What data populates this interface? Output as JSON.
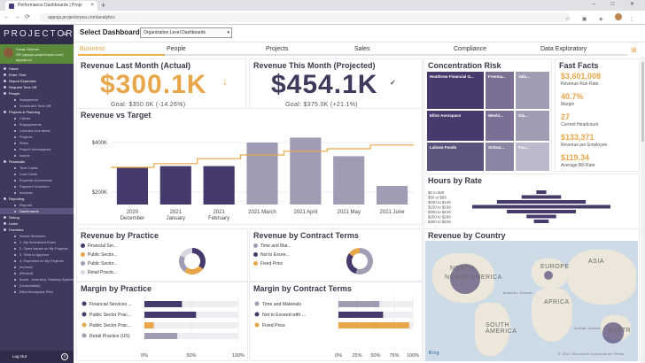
{
  "browser": {
    "tab_title": "Performance Dashboards | Proje",
    "url": "appoja.projectorpsa.com/analytics",
    "window_controls": "– □ ✕"
  },
  "sidebar": {
    "logo": "PROJECTOR",
    "user_name": "Susan Skinner",
    "user_email": "GR (appoja.projectorpsa.com)",
    "user_extra": "appoja.ud",
    "items": [
      {
        "label": "Home",
        "type": "sec"
      },
      {
        "label": "Enter Time",
        "type": "sec"
      },
      {
        "label": "Report Expenses",
        "type": "sec"
      },
      {
        "label": "Request Time Off",
        "type": "sec"
      },
      {
        "label": "People",
        "type": "sec"
      },
      {
        "label": "Assignment",
        "type": "sub"
      },
      {
        "label": "Scheduled Time Off",
        "type": "sub"
      },
      {
        "label": "Projects & Planning",
        "type": "sec"
      },
      {
        "label": "Clients",
        "type": "sub"
      },
      {
        "label": "Engagements",
        "type": "sub"
      },
      {
        "label": "Contract Line Items",
        "type": "sub"
      },
      {
        "label": "Projects",
        "type": "sub"
      },
      {
        "label": "Roles",
        "type": "sub"
      },
      {
        "label": "Project Workspaces",
        "type": "sub"
      },
      {
        "label": "Issues",
        "type": "sub"
      },
      {
        "label": "Financials",
        "type": "sec"
      },
      {
        "label": "Time Cards",
        "type": "sub"
      },
      {
        "label": "Cost Cards",
        "type": "sub"
      },
      {
        "label": "Expense Documents",
        "type": "sub"
      },
      {
        "label": "Payment Vouchers",
        "type": "sub"
      },
      {
        "label": "Invoices",
        "type": "sub"
      },
      {
        "label": "Reporting",
        "type": "sec"
      },
      {
        "label": "Reports",
        "type": "sub"
      },
      {
        "label": "Dashboards",
        "type": "sub-act"
      },
      {
        "label": "Debug",
        "type": "sec"
      },
      {
        "label": "Learn",
        "type": "sec"
      },
      {
        "label": "Favorites",
        "type": "sec"
      },
      {
        "label": "Saved Searches",
        "type": "sub"
      },
      {
        "label": "1. My Scheduled Roles",
        "type": "sub"
      },
      {
        "label": "2. Open Issues on My Projects",
        "type": "sub"
      },
      {
        "label": "3. Time to Approve",
        "type": "sub"
      },
      {
        "label": "4. Expenses on My Projects",
        "type": "sub"
      },
      {
        "label": "Invoices",
        "type": "sub"
      },
      {
        "label": "(Recent)",
        "type": "sub"
      },
      {
        "label": "Acme - Inventory Tracking System Beta Release",
        "type": "sub"
      },
      {
        "label": "(Unavailable)",
        "type": "sub"
      },
      {
        "label": "Elliot Aerospace Pilot",
        "type": "sub"
      }
    ],
    "logout": "Log Out"
  },
  "header": {
    "label": "Select Dashboard",
    "dashboard_select": "Organization Level Dashboards"
  },
  "tabs": [
    "Business",
    "People",
    "Projects",
    "Sales",
    "Compliance",
    "Data Exploratory"
  ],
  "active_tab": "Business",
  "kpis": {
    "last_month": {
      "title": "Revenue Last Month (Actual)",
      "value": "$300.1K",
      "goal": "Goal: $350.0K (-14.26%)",
      "arrow": "↓"
    },
    "this_month": {
      "title": "Revenue This Month (Projected)",
      "value": "$454.1K",
      "goal": "Goal: $375.0K (+21.1%)",
      "arrow": "✓"
    }
  },
  "concentration": {
    "title": "Concentration Risk",
    "tiles": [
      "Heathrow Financial G...",
      "Freema...",
      "Valu...",
      "Elliot Aerospace",
      "Weshi...",
      "Gla...",
      "Lalinea Foods",
      "Schwa...",
      "Pac..."
    ]
  },
  "fast_facts": {
    "title": "Fast Facts",
    "items": [
      {
        "value": "$3,601,008",
        "label": "Revenue Run Rate"
      },
      {
        "value": "40.7%",
        "label": "Margin"
      },
      {
        "value": "27",
        "label": "Current Headcount"
      },
      {
        "value": "$133,371",
        "label": "Revenue per Employee"
      },
      {
        "value": "$119.34",
        "label": "Average Bill Rate"
      }
    ]
  },
  "chart_data": [
    {
      "type": "bar",
      "title": "Revenue vs Target",
      "categories": [
        "2020 December",
        "2021 January",
        "2021 February",
        "2021 March",
        "2021 April",
        "2021 May",
        "2021 June"
      ],
      "category_lines": [
        [
          "2020",
          "December"
        ],
        [
          "2021",
          "January"
        ],
        [
          "2021",
          "February"
        ],
        [
          "2021 March",
          ""
        ],
        [
          "2021 April",
          ""
        ],
        [
          "2021 May",
          ""
        ],
        [
          "2021 June",
          ""
        ]
      ],
      "series": [
        {
          "values": [
            300,
            305,
            305,
            400,
            420,
            345,
            225
          ],
          "colors": [
            "#453a6b",
            "#453a6b",
            "#453a6b",
            "#a19bb3",
            "#a19bb3",
            "#a19bb3",
            "#a19bb3"
          ]
        },
        {
          "kind": "step-line",
          "values": [
            300,
            315,
            335,
            350,
            365,
            375,
            390
          ],
          "color": "#e8a64a"
        }
      ],
      "ytick_labels": [
        "$200K",
        "$400K"
      ],
      "yticks": [
        200,
        400
      ],
      "ylim": [
        150,
        450
      ]
    },
    {
      "type": "bar",
      "title": "Hours by Rate",
      "orientation": "horizontal-diverging",
      "categories": [
        "$0 to $49",
        "$50 to $99",
        "$100 to $149",
        "$150 to $199",
        "$200 to $249",
        "$250 to $299",
        "$300 to $349"
      ],
      "values": [
        10,
        40,
        90,
        140,
        70,
        30,
        15
      ]
    },
    {
      "type": "pie",
      "title": "Revenue by Practice",
      "labels": [
        "Financial Ser...",
        "Public Sector...",
        "Public Sector...",
        "Retail Practic..."
      ],
      "values": [
        35,
        25,
        22,
        18
      ],
      "colors": [
        "#453a6b",
        "#e8a64a",
        "#a19bb3",
        "#d9d5e3"
      ]
    },
    {
      "type": "pie",
      "title": "Revenue by Contract Terms",
      "labels": [
        "Time and Mat...",
        "Not to Excee...",
        "Fixed Price"
      ],
      "values": [
        55,
        30,
        15
      ],
      "colors": [
        "#a19bb3",
        "#453a6b",
        "#e8a64a"
      ]
    },
    {
      "type": "bar",
      "title": "Margin by Practice",
      "orientation": "horizontal",
      "categories": [
        "Financial Services ...",
        "Public Sector Prac...",
        "Public Sector Prac...",
        "Retail Practice (US)"
      ],
      "values": [
        40,
        55,
        10,
        35
      ],
      "colors": [
        "#453a6b",
        "#453a6b",
        "#e8a64a",
        "#a19bb3"
      ],
      "xtick_labels": [
        "0%",
        "50%",
        "100%"
      ],
      "xlim": [
        0,
        100
      ]
    },
    {
      "type": "bar",
      "title": "Margin by Contract Terms",
      "orientation": "horizontal",
      "categories": [
        "Time and Materials",
        "Not to Exceed with ...",
        "Fixed Price"
      ],
      "values": [
        55,
        60,
        95
      ],
      "colors": [
        "#a19bb3",
        "#453a6b",
        "#e8a64a"
      ],
      "xtick_labels": [
        "0%",
        "25%",
        "50%",
        "75%",
        "100%"
      ],
      "xlim": [
        0,
        100
      ]
    }
  ],
  "map": {
    "title": "Revenue by Country",
    "labels": [
      "NORTH AMERICA",
      "EUROPE",
      "ASIA",
      "AFRICA",
      "SOUTH AMERICA",
      "AUSTR"
    ],
    "oceans": [
      "Atlantic Ocean",
      "Indian Ocean"
    ],
    "provider": "Bing",
    "copyright": "© 2021 Microsoft Corporation  Terms"
  }
}
